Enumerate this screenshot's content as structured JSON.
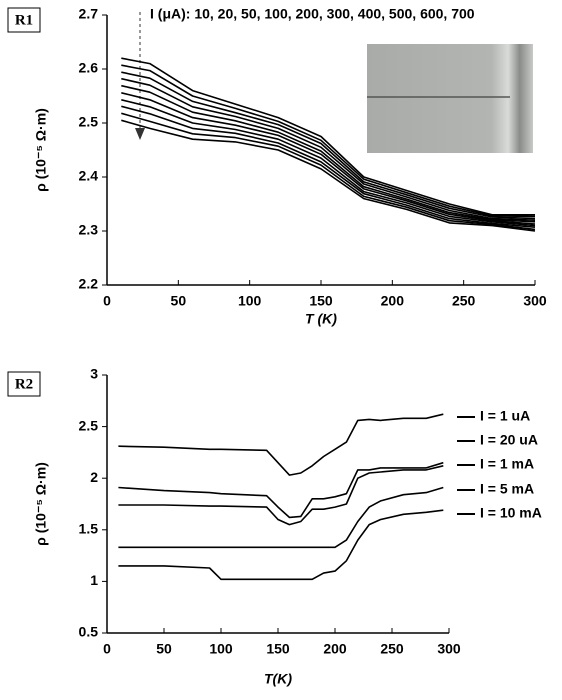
{
  "chart_data": [
    {
      "type": "line",
      "panel_label": "R1",
      "title": "I (μA): 10, 20, 50, 100, 200, 300, 400, 500, 600, 700",
      "x_label": "T (K)",
      "y_label": "ρ (10⁻⁵ Ω·m)",
      "xlim": [
        0,
        300
      ],
      "xticks": [
        0,
        50,
        100,
        150,
        200,
        250,
        300
      ],
      "ylim": [
        2.2,
        2.7
      ],
      "yticks": [
        2.2,
        2.3,
        2.4,
        2.5,
        2.6,
        2.7
      ],
      "grid": false,
      "x": [
        10,
        30,
        60,
        90,
        120,
        150,
        180,
        210,
        240,
        270,
        300
      ],
      "series": [
        {
          "color": "#000000",
          "values": [
            2.62,
            2.61,
            2.56,
            2.535,
            2.51,
            2.475,
            2.4,
            2.375,
            2.35,
            2.33,
            2.33
          ]
        },
        {
          "color": "#000000",
          "values": [
            2.607,
            2.597,
            2.55,
            2.527,
            2.503,
            2.468,
            2.396,
            2.371,
            2.346,
            2.328,
            2.327
          ]
        },
        {
          "color": "#000000",
          "values": [
            2.594,
            2.583,
            2.54,
            2.519,
            2.497,
            2.462,
            2.391,
            2.367,
            2.342,
            2.326,
            2.323
          ]
        },
        {
          "color": "#000000",
          "values": [
            2.582,
            2.57,
            2.53,
            2.512,
            2.49,
            2.455,
            2.387,
            2.363,
            2.338,
            2.323,
            2.32
          ]
        },
        {
          "color": "#000000",
          "values": [
            2.569,
            2.557,
            2.52,
            2.504,
            2.483,
            2.448,
            2.382,
            2.359,
            2.334,
            2.321,
            2.317
          ]
        },
        {
          "color": "#000000",
          "values": [
            2.556,
            2.543,
            2.51,
            2.496,
            2.477,
            2.442,
            2.378,
            2.356,
            2.331,
            2.319,
            2.313
          ]
        },
        {
          "color": "#000000",
          "values": [
            2.543,
            2.53,
            2.5,
            2.488,
            2.47,
            2.435,
            2.373,
            2.352,
            2.327,
            2.317,
            2.31
          ]
        },
        {
          "color": "#000000",
          "values": [
            2.531,
            2.517,
            2.49,
            2.481,
            2.463,
            2.428,
            2.369,
            2.348,
            2.323,
            2.314,
            2.307
          ]
        },
        {
          "color": "#000000",
          "values": [
            2.518,
            2.503,
            2.48,
            2.473,
            2.457,
            2.422,
            2.364,
            2.344,
            2.319,
            2.312,
            2.303
          ]
        },
        {
          "color": "#000000",
          "values": [
            2.505,
            2.49,
            2.47,
            2.465,
            2.45,
            2.415,
            2.36,
            2.34,
            2.315,
            2.31,
            2.3
          ]
        }
      ]
    },
    {
      "type": "line",
      "panel_label": "R2",
      "x_label": "T(K)",
      "y_label": "ρ (10⁻⁵ Ω·m)",
      "xlim": [
        0,
        300
      ],
      "xticks": [
        0,
        50,
        100,
        150,
        200,
        250,
        300
      ],
      "ylim": [
        0.5,
        3
      ],
      "yticks": [
        0.5,
        1,
        1.5,
        2,
        2.5,
        3
      ],
      "grid": false,
      "legend": "right",
      "x": [
        10,
        50,
        90,
        100,
        140,
        150,
        160,
        170,
        180,
        190,
        200,
        210,
        220,
        230,
        240,
        260,
        280,
        295
      ],
      "series": [
        {
          "name": "I = 1 uA",
          "color": "#000000",
          "values": [
            2.31,
            2.3,
            2.28,
            2.28,
            2.27,
            2.15,
            2.03,
            2.05,
            2.12,
            2.21,
            2.28,
            2.35,
            2.56,
            2.57,
            2.56,
            2.58,
            2.58,
            2.62
          ]
        },
        {
          "name": "I = 20 uA",
          "color": "#000000",
          "values": [
            1.91,
            1.88,
            1.86,
            1.85,
            1.83,
            1.72,
            1.62,
            1.63,
            1.8,
            1.8,
            1.82,
            1.85,
            2.08,
            2.08,
            2.1,
            2.1,
            2.1,
            2.15
          ]
        },
        {
          "name": "I = 1 mA",
          "color": "#000000",
          "values": [
            1.74,
            1.74,
            1.73,
            1.73,
            1.72,
            1.6,
            1.55,
            1.58,
            1.7,
            1.7,
            1.72,
            1.75,
            2.0,
            2.05,
            2.06,
            2.08,
            2.08,
            2.12
          ]
        },
        {
          "name": "I = 5 mA",
          "color": "#000000",
          "values": [
            1.33,
            1.33,
            1.33,
            1.33,
            1.33,
            1.33,
            1.33,
            1.33,
            1.33,
            1.33,
            1.33,
            1.4,
            1.58,
            1.72,
            1.78,
            1.84,
            1.86,
            1.91
          ]
        },
        {
          "name": "I = 10 mA",
          "color": "#000000",
          "values": [
            1.15,
            1.15,
            1.13,
            1.02,
            1.02,
            1.02,
            1.02,
            1.02,
            1.02,
            1.08,
            1.1,
            1.2,
            1.4,
            1.55,
            1.6,
            1.65,
            1.67,
            1.69
          ]
        }
      ]
    }
  ]
}
